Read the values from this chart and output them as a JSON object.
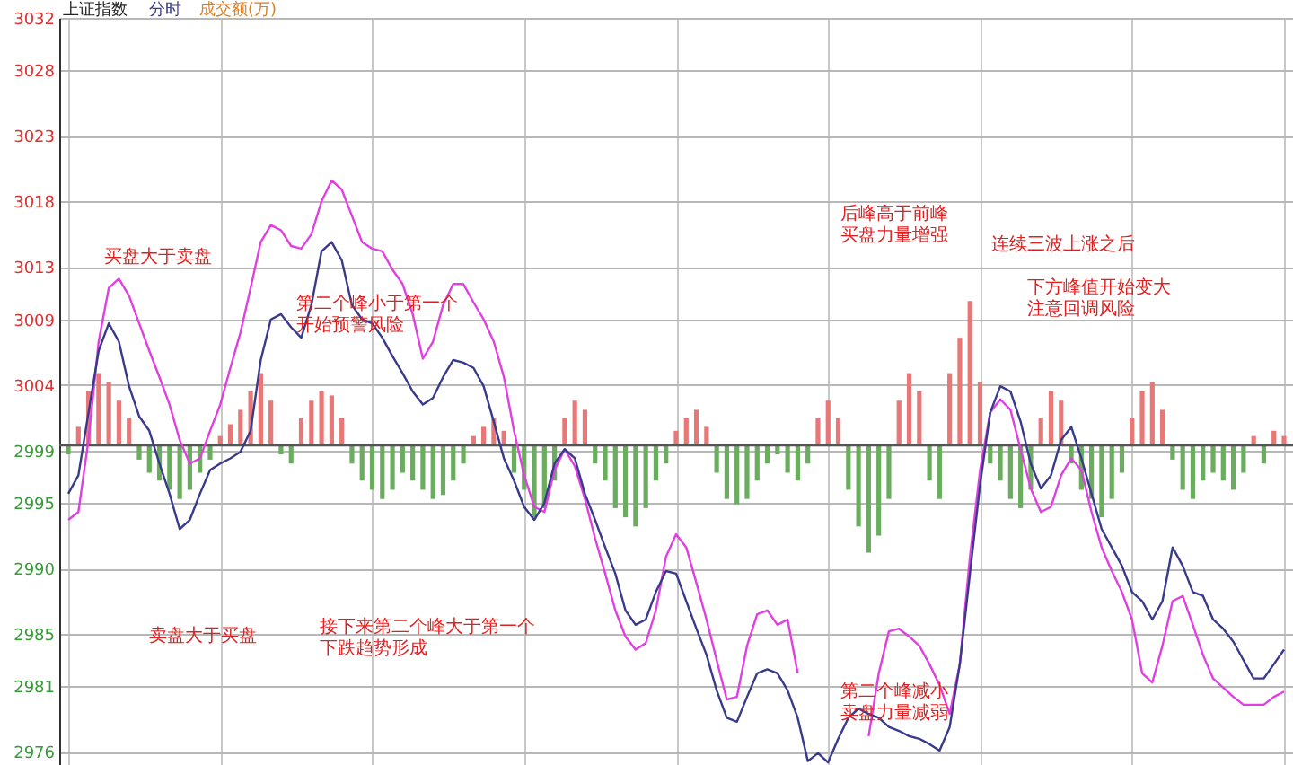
{
  "chart_data": {
    "type": "line",
    "title": "上证指数",
    "subtitle": "成交额(万)",
    "categories": [
      null,
      null,
      null,
      null,
      null,
      null,
      null,
      null,
      null,
      null,
      null,
      null,
      null,
      null,
      null,
      null,
      null,
      null,
      null,
      null,
      null,
      null,
      null,
      null,
      null,
      null,
      null,
      null,
      null,
      null,
      null,
      null,
      null,
      null,
      null,
      null,
      null,
      null,
      null,
      null,
      null,
      null,
      null,
      null,
      null,
      null,
      null,
      null,
      null,
      null,
      null,
      null,
      null,
      null,
      null,
      null,
      null,
      null,
      null,
      null,
      null,
      null,
      null,
      null,
      null,
      null,
      null,
      null,
      null,
      null,
      null,
      null,
      null,
      null,
      null,
      null,
      null,
      null,
      null,
      null,
      null,
      null,
      null,
      null,
      null,
      null,
      null,
      null,
      null,
      null,
      null,
      null,
      null,
      null,
      null,
      null,
      null,
      null,
      null,
      null,
      null,
      null,
      null,
      null,
      null,
      null,
      null,
      null,
      null,
      null,
      null,
      null,
      null,
      null,
      null,
      null,
      null,
      null,
      null,
      null,
      null
    ],
    "series": [
      {
        "type": "bar",
        "values": [
          -0.7,
          1.4,
          4.1,
          5.5,
          4.8,
          3.4,
          2.1,
          -1.1,
          -2.1,
          -2.7,
          -3.4,
          -4.1,
          -3.4,
          -2.1,
          -1.1,
          0.7,
          1.6,
          2.7,
          4.1,
          5.5,
          3.4,
          -0.7,
          -1.4,
          2.1,
          3.4,
          4.1,
          3.8,
          2.1,
          -1.4,
          -2.7,
          -3.4,
          -4.1,
          -3.4,
          -2.1,
          -2.7,
          -3.4,
          -4.1,
          -3.8,
          -2.7,
          -1.4,
          0.7,
          1.4,
          2.1,
          1.1,
          -2.1,
          -3.4,
          -5.5,
          -4.8,
          -2.7,
          2.1,
          3.4,
          2.7,
          -1.4,
          -2.7,
          -4.8,
          -5.5,
          -6.2,
          -4.8,
          -2.7,
          -1.4,
          1.1,
          2.1,
          2.7,
          1.4,
          -2.1,
          -4.1,
          -4.5,
          -4.1,
          -2.7,
          -1.4,
          -0.7,
          -2.1,
          -2.7,
          -1.4,
          2.1,
          3.4,
          2.1,
          -3.4,
          -6.2,
          -8.2,
          -6.9,
          -4.1,
          3.4,
          5.5,
          4.1,
          -2.7,
          -4.1,
          5.5,
          8.2,
          11.0,
          4.8,
          -1.4,
          -2.7,
          -4.1,
          -4.8,
          -3.4,
          2.1,
          4.1,
          3.4,
          -1.4,
          -3.4,
          -4.1,
          -5.5,
          -4.1,
          -2.1,
          2.1,
          4.1,
          4.8,
          2.7,
          -1.1,
          -3.4,
          -4.1,
          -2.7,
          -2.1,
          -2.7,
          -3.4,
          -2.1,
          0.7,
          -1.4,
          1.1,
          0.7
        ],
        "base": [
          2999.4,
          2999.4,
          2999.4,
          2999.4,
          2999.4,
          2999.4,
          2999.4,
          2999.4,
          2999.4,
          2999.4,
          2999.4,
          2999.4,
          2999.4,
          2999.4,
          2999.4,
          2999.4,
          2999.4,
          2999.4,
          2999.4,
          2999.4,
          2999.4,
          2999.4,
          2999.4,
          2999.4,
          2999.4,
          2999.4,
          2999.4,
          2999.4,
          2999.4,
          2999.4,
          2999.4,
          2999.4,
          2999.4,
          2999.4,
          2999.4,
          2999.4,
          2999.4,
          2999.4,
          2999.4,
          2999.4,
          2999.4,
          2999.4,
          2999.4,
          2999.4,
          2999.4,
          2999.4,
          2999.4,
          2999.4,
          2999.4,
          2999.4,
          2999.4,
          2999.4,
          2999.4,
          2999.4,
          2999.4,
          2999.4,
          2999.4,
          2999.4,
          2999.4,
          2999.4,
          2999.4,
          2999.4,
          2999.4,
          2999.4,
          2999.4,
          2999.4,
          2999.4,
          2999.4,
          2999.4,
          2999.4,
          2999.4,
          2999.4,
          2999.4,
          2999.4,
          2999.4,
          2999.4,
          2999.4,
          2999.4,
          2999.4,
          2999.4,
          2999.4,
          2999.4,
          2999.4,
          2999.4,
          2999.4,
          2999.4,
          2999.4,
          2999.4,
          2999.4,
          2999.4,
          2999.4,
          2999.4,
          2999.4,
          2999.4,
          2999.4,
          2999.4,
          2999.4,
          2999.4,
          2999.4,
          2999.4,
          2999.4,
          2999.4,
          2999.4,
          2999.4,
          2999.4,
          2999.4,
          2999.4,
          2999.4,
          2999.4,
          2999.4,
          2999.4,
          2999.4,
          2999.4,
          2999.4,
          2999.4,
          2999.4,
          2999.4,
          2999.4,
          2999.4,
          2999.4,
          2999.4
        ],
        "colors": [
          "#6aad5e",
          "#e87878",
          "#e87878",
          "#e87878",
          "#e87878",
          "#e87878",
          "#e87878",
          "#6aad5e",
          "#6aad5e",
          "#6aad5e",
          "#6aad5e",
          "#6aad5e",
          "#6aad5e",
          "#6aad5e",
          "#6aad5e",
          "#e87878",
          "#e87878",
          "#e87878",
          "#e87878",
          "#e87878",
          "#e87878",
          "#6aad5e",
          "#6aad5e",
          "#e87878",
          "#e87878",
          "#e87878",
          "#e87878",
          "#e87878",
          "#6aad5e",
          "#6aad5e",
          "#6aad5e",
          "#6aad5e",
          "#6aad5e",
          "#6aad5e",
          "#6aad5e",
          "#6aad5e",
          "#6aad5e",
          "#6aad5e",
          "#6aad5e",
          "#6aad5e",
          "#e87878",
          "#e87878",
          "#e87878",
          "#e87878",
          "#6aad5e",
          "#6aad5e",
          "#6aad5e",
          "#6aad5e",
          "#6aad5e",
          "#e87878",
          "#e87878",
          "#e87878",
          "#6aad5e",
          "#6aad5e",
          "#6aad5e",
          "#6aad5e",
          "#6aad5e",
          "#6aad5e",
          "#6aad5e",
          "#6aad5e",
          "#e87878",
          "#e87878",
          "#e87878",
          "#e87878",
          "#6aad5e",
          "#6aad5e",
          "#6aad5e",
          "#6aad5e",
          "#6aad5e",
          "#6aad5e",
          "#6aad5e",
          "#6aad5e",
          "#6aad5e",
          "#6aad5e",
          "#e87878",
          "#e87878",
          "#e87878",
          "#6aad5e",
          "#6aad5e",
          "#6aad5e",
          "#6aad5e",
          "#6aad5e",
          "#e87878",
          "#e87878",
          "#e87878",
          "#6aad5e",
          "#6aad5e",
          "#e87878",
          "#e87878",
          "#e87878",
          "#e87878",
          "#6aad5e",
          "#6aad5e",
          "#6aad5e",
          "#6aad5e",
          "#6aad5e",
          "#e87878",
          "#e87878",
          "#e87878",
          "#6aad5e",
          "#6aad5e",
          "#6aad5e",
          "#6aad5e",
          "#6aad5e",
          "#6aad5e",
          "#e87878",
          "#e87878",
          "#e87878",
          "#e87878",
          "#6aad5e",
          "#6aad5e",
          "#6aad5e",
          "#6aad5e",
          "#6aad5e",
          "#6aad5e",
          "#6aad5e",
          "#6aad5e",
          "#e87878",
          "#6aad5e",
          "#e87878",
          "#e87878"
        ]
      },
      {
        "color": "#e040e0",
        "values": [
          2993.7,
          2994.3,
          2999.8,
          3007.3,
          3011.4,
          3012.1,
          3010.8,
          3008.7,
          3006.6,
          3004.6,
          3002.5,
          2999.8,
          2998.0,
          2998.4,
          3000.5,
          3002.5,
          3005.3,
          3008.0,
          3011.4,
          3014.9,
          3016.2,
          3015.8,
          3014.6,
          3014.4,
          3015.5,
          3018.0,
          3019.6,
          3018.9,
          3016.9,
          3014.9,
          3014.4,
          3014.2,
          3012.8,
          3011.7,
          3009.4,
          3006.0,
          3007.3,
          3010.1,
          3011.7,
          3011.7,
          3010.3,
          3009.0,
          3007.3,
          3004.6,
          3000.5,
          2997.1,
          2994.7,
          2994.3,
          2997.5,
          2999.1,
          2997.8,
          2995.3,
          2992.3,
          2989.6,
          2986.8,
          2984.8,
          2983.8,
          2984.3,
          2986.8,
          2990.9,
          2992.6,
          2991.6,
          2988.9,
          2986.1,
          2983.0,
          2980.0,
          2980.2,
          2984.1,
          2986.5,
          2986.8,
          2985.7,
          2986.1,
          2982.0,
          null,
          null,
          null,
          null,
          null,
          null,
          2977.2,
          2982.0,
          2985.2,
          2985.4,
          2984.8,
          2984.1,
          2982.7,
          2981.1,
          2978.9,
          2982.7,
          2990.9,
          2997.5,
          3001.9,
          3002.9,
          3002.1,
          2999.1,
          2996.1,
          2994.3,
          2994.7,
          2997.1,
          2998.4,
          2997.5,
          2994.3,
          2991.6,
          2989.8,
          2988.2,
          2986.1,
          2982.0,
          2981.3,
          2984.1,
          2987.5,
          2987.9,
          2985.7,
          2983.4,
          2981.6,
          2980.9,
          2980.2,
          2979.6,
          2979.6,
          2979.6,
          2980.2,
          2980.6
        ]
      },
      {
        "name": "分时",
        "color": "#3a3a8c",
        "values": [
          2995.7,
          2997.1,
          3001.9,
          3006.6,
          3008.7,
          3007.3,
          3003.9,
          3001.6,
          3000.5,
          2998.0,
          2995.7,
          2993.0,
          2993.7,
          2995.7,
          2997.5,
          2998.0,
          2998.4,
          2998.9,
          3000.5,
          3005.9,
          3009.0,
          3009.4,
          3008.4,
          3007.6,
          3010.1,
          3014.2,
          3014.9,
          3013.5,
          3010.1,
          3009.0,
          3008.7,
          3007.6,
          3006.2,
          3004.9,
          3003.5,
          3002.5,
          3003.0,
          3004.6,
          3005.9,
          3005.7,
          3005.3,
          3003.9,
          3001.2,
          2998.4,
          2996.7,
          2994.7,
          2993.7,
          2995.0,
          2998.0,
          2999.1,
          2998.4,
          2995.7,
          2993.7,
          2991.6,
          2989.6,
          2986.8,
          2985.7,
          2986.1,
          2988.2,
          2989.8,
          2989.6,
          2987.5,
          2985.4,
          2983.4,
          2980.7,
          2978.6,
          2978.3,
          2980.2,
          2982.0,
          2982.3,
          2982.0,
          2980.7,
          2978.6,
          2975.3,
          2975.9,
          2975.2,
          2977.0,
          2978.6,
          2979.3,
          2978.9,
          2978.6,
          2977.9,
          2977.6,
          2977.2,
          2977.0,
          2976.6,
          2976.1,
          2977.9,
          2982.7,
          2989.6,
          2996.4,
          3001.9,
          3003.9,
          3003.5,
          3001.2,
          2998.0,
          2996.1,
          2997.1,
          2999.8,
          3000.8,
          2998.4,
          2995.7,
          2993.0,
          2991.6,
          2990.2,
          2988.2,
          2987.5,
          2986.1,
          2987.5,
          2991.6,
          2990.2,
          2988.2,
          2987.9,
          2986.1,
          2985.4,
          2984.4,
          2983.0,
          2981.6,
          2981.6,
          2982.7,
          2983.8
        ]
      }
    ],
    "ylim": [
      2975,
      3032
    ],
    "yticks": [
      2976,
      2981,
      2985,
      2990,
      2995,
      2999,
      3004,
      3009,
      3013,
      3018,
      3023,
      3028,
      3032
    ],
    "ref_lines": [
      {
        "axis": "y",
        "value": 2999.4,
        "color": "#555555"
      }
    ],
    "grid": true,
    "annotations": [
      "买盘大于卖盘",
      "第二个峰小于第一个",
      "开始预警风险",
      "后峰高于前峰",
      "买盘力量增强",
      "连续三波上涨之后",
      "下方峰值开始变大",
      "注意回调风险",
      "卖盘大于买盘",
      "接下来第二个峰大于第一个",
      "下跌趋势形成",
      "第二个峰减小",
      "卖盘力量减弱"
    ]
  }
}
